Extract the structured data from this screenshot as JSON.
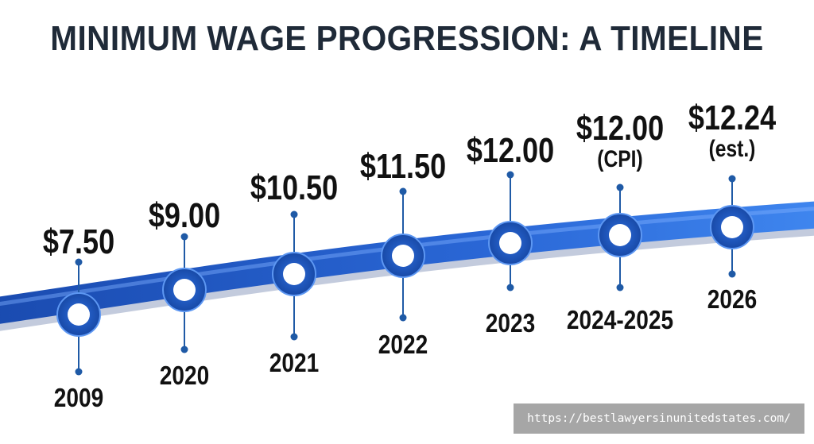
{
  "title": "MINIMUM WAGE PROGRESSION: A TIMELINE",
  "watermark": "https://bestlawyersinunitedstates.com/",
  "colors": {
    "ribbon_dark": "#1b4fb3",
    "ribbon_light": "#3f82ee",
    "connector": "#1f5aa6",
    "node_fill": "#ffffff",
    "text": "#111111"
  },
  "milestones": [
    {
      "year": "2009",
      "wage": "$7.50",
      "note": ""
    },
    {
      "year": "2020",
      "wage": "$9.00",
      "note": ""
    },
    {
      "year": "2021",
      "wage": "$10.50",
      "note": ""
    },
    {
      "year": "2022",
      "wage": "$11.50",
      "note": ""
    },
    {
      "year": "2023",
      "wage": "$12.00",
      "note": ""
    },
    {
      "year": "2024-2025",
      "wage": "$12.00",
      "note": "(CPI)"
    },
    {
      "year": "2026",
      "wage": "$12.24",
      "note": "(est.)"
    }
  ]
}
